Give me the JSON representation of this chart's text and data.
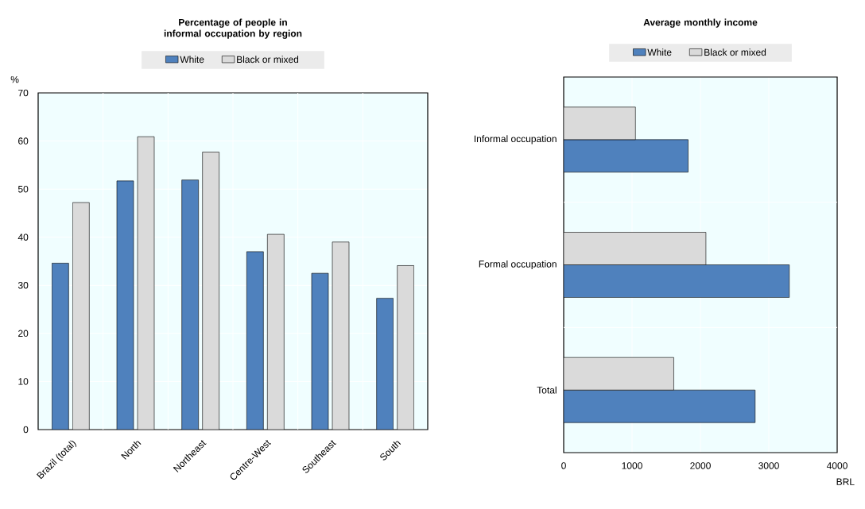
{
  "chart_data": [
    {
      "type": "bar",
      "title": "Percentage of people in informal occupation by region",
      "ylabel": "%",
      "categories": [
        "Brazil (total)",
        "North",
        "Northeast",
        "Centre-West",
        "Southeast",
        "South"
      ],
      "series": [
        {
          "name": "White",
          "color": "#4f81bd",
          "values": [
            34.6,
            51.7,
            51.9,
            37.0,
            32.5,
            27.3
          ]
        },
        {
          "name": "Black or mixed",
          "color": "#dadada",
          "values": [
            47.2,
            60.9,
            57.7,
            40.6,
            39.0,
            34.1
          ]
        }
      ],
      "ylim": [
        0,
        70
      ],
      "yticks": [
        0,
        10,
        20,
        30,
        40,
        50,
        60,
        70
      ],
      "grid": true,
      "legend": "top"
    },
    {
      "type": "bar",
      "orientation": "horizontal",
      "title": "Average monthly income",
      "xlabel": "BRL",
      "categories": [
        "Informal occupation",
        "Formal occupation",
        "Total"
      ],
      "series": [
        {
          "name": "White",
          "color": "#4f81bd",
          "values": [
            1820,
            3300,
            2800
          ]
        },
        {
          "name": "Black or mixed",
          "color": "#dadada",
          "values": [
            1050,
            2080,
            1610
          ]
        }
      ],
      "xlim": [
        0,
        4000
      ],
      "xticks": [
        0,
        1000,
        2000,
        3000,
        4000
      ],
      "grid": true,
      "legend": "top"
    }
  ]
}
